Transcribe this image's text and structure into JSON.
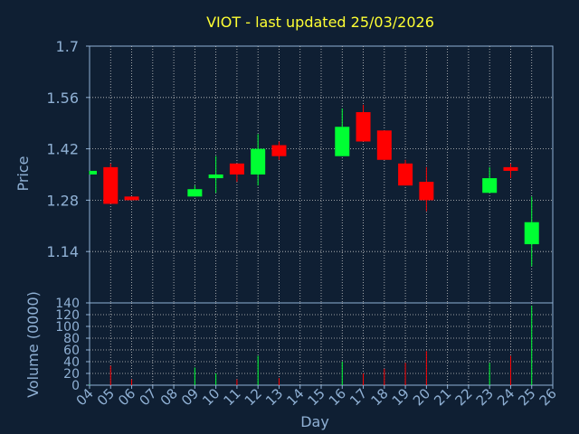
{
  "chart_data": [
    {
      "type": "candlestick",
      "title": "VIOT - last updated 25/03/2026",
      "ylabel": "Price",
      "ylim": [
        1.0,
        1.7
      ],
      "yticks": [
        "1.7",
        "1.56",
        "1.42",
        "1.28",
        "1.14"
      ],
      "ytick_values": [
        1.7,
        1.56,
        1.42,
        1.28,
        1.14
      ],
      "grid": true,
      "colors": {
        "up": "#00ff33",
        "down": "#ff0000"
      },
      "candles": [
        {
          "day": "04",
          "open": 1.35,
          "high": 1.36,
          "low": 1.35,
          "close": 1.36
        },
        {
          "day": "05",
          "open": 1.37,
          "high": 1.38,
          "low": 1.27,
          "close": 1.27
        },
        {
          "day": "06",
          "open": 1.29,
          "high": 1.29,
          "low": 1.28,
          "close": 1.28
        },
        {
          "day": "09",
          "open": 1.29,
          "high": 1.32,
          "low": 1.29,
          "close": 1.31
        },
        {
          "day": "10",
          "open": 1.34,
          "high": 1.4,
          "low": 1.3,
          "close": 1.35
        },
        {
          "day": "11",
          "open": 1.38,
          "high": 1.38,
          "low": 1.33,
          "close": 1.35
        },
        {
          "day": "12",
          "open": 1.35,
          "high": 1.46,
          "low": 1.32,
          "close": 1.42
        },
        {
          "day": "13",
          "open": 1.43,
          "high": 1.44,
          "low": 1.39,
          "close": 1.4
        },
        {
          "day": "16",
          "open": 1.4,
          "high": 1.53,
          "low": 1.4,
          "close": 1.48
        },
        {
          "day": "17",
          "open": 1.52,
          "high": 1.54,
          "low": 1.44,
          "close": 1.44
        },
        {
          "day": "18",
          "open": 1.47,
          "high": 1.47,
          "low": 1.39,
          "close": 1.39
        },
        {
          "day": "19",
          "open": 1.38,
          "high": 1.39,
          "low": 1.32,
          "close": 1.32
        },
        {
          "day": "20",
          "open": 1.33,
          "high": 1.37,
          "low": 1.25,
          "close": 1.28
        },
        {
          "day": "23",
          "open": 1.3,
          "high": 1.37,
          "low": 1.3,
          "close": 1.34
        },
        {
          "day": "24",
          "open": 1.37,
          "high": 1.38,
          "low": 1.34,
          "close": 1.36
        },
        {
          "day": "25",
          "open": 1.16,
          "high": 1.29,
          "low": 1.1,
          "close": 1.22
        }
      ]
    },
    {
      "type": "bar",
      "ylabel": "Volume (0000)",
      "xlabel": "Day",
      "ylim": [
        0,
        140
      ],
      "yticks": [
        "140",
        "120",
        "100",
        "80",
        "60",
        "40",
        "20",
        "0"
      ],
      "ytick_values": [
        140,
        120,
        100,
        80,
        60,
        40,
        20,
        0
      ],
      "categories": [
        "04",
        "05",
        "06",
        "07",
        "08",
        "09",
        "10",
        "11",
        "12",
        "13",
        "14",
        "15",
        "16",
        "17",
        "18",
        "19",
        "20",
        "21",
        "22",
        "23",
        "24",
        "25",
        "26"
      ],
      "volumes": [
        {
          "day": "04",
          "value": 1,
          "color": "#00ff33"
        },
        {
          "day": "05",
          "value": 33,
          "color": "#ff0000"
        },
        {
          "day": "06",
          "value": 10,
          "color": "#ff0000"
        },
        {
          "day": "09",
          "value": 30,
          "color": "#00ff33"
        },
        {
          "day": "10",
          "value": 20,
          "color": "#00ff33"
        },
        {
          "day": "11",
          "value": 10,
          "color": "#ff0000"
        },
        {
          "day": "12",
          "value": 50,
          "color": "#00ff33"
        },
        {
          "day": "13",
          "value": 12,
          "color": "#ff0000"
        },
        {
          "day": "16",
          "value": 40,
          "color": "#00ff33"
        },
        {
          "day": "17",
          "value": 20,
          "color": "#ff0000"
        },
        {
          "day": "18",
          "value": 28,
          "color": "#ff0000"
        },
        {
          "day": "19",
          "value": 38,
          "color": "#ff0000"
        },
        {
          "day": "20",
          "value": 58,
          "color": "#ff0000"
        },
        {
          "day": "23",
          "value": 38,
          "color": "#00ff33"
        },
        {
          "day": "24",
          "value": 50,
          "color": "#ff0000"
        },
        {
          "day": "25",
          "value": 135,
          "color": "#00ff33"
        }
      ]
    }
  ]
}
